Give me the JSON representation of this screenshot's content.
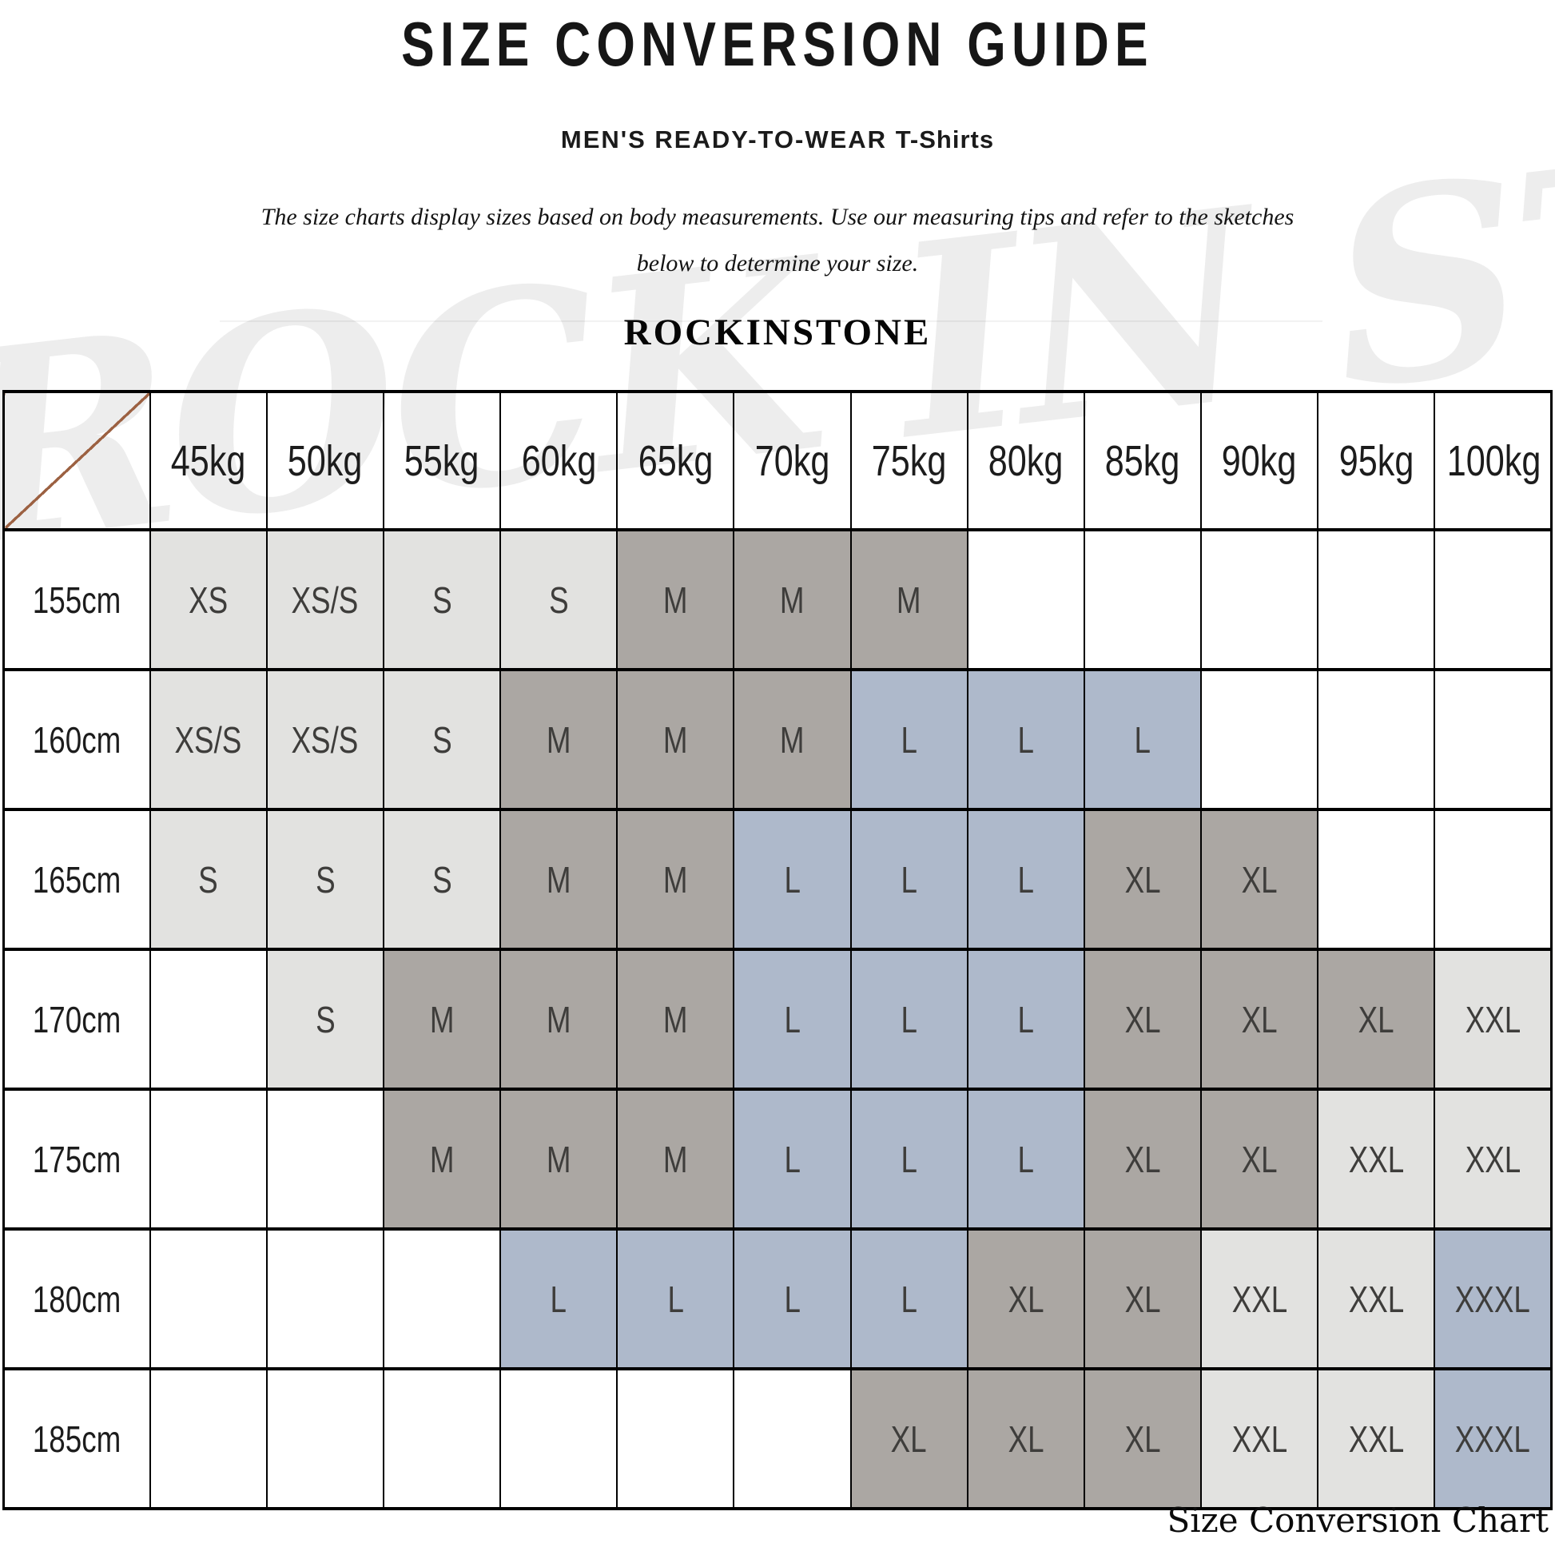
{
  "header": {
    "title": "SIZE CONVERSION GUIDE",
    "subtitle_main": "MEN'S READY-TO-WEAR",
    "subtitle_product": "T-Shirts",
    "description_line1": "The size charts display sizes based on body measurements.  Use our measuring tips and refer to the sketches",
    "description_line2": "below to determine your size.",
    "brand": "ROCKINSTONE"
  },
  "watermark": {
    "text": "ROCK IN STONE"
  },
  "caption": "Size Conversion Chart",
  "colors": {
    "cell_light": "#e2e2e0",
    "cell_taupe": "#aba7a3",
    "cell_blue": "#aeb9cb",
    "grid_line": "#000000",
    "diagonal_line": "#9c6142",
    "size_text": "#3e3d3b"
  },
  "chart_data": {
    "type": "table",
    "title": "SIZE CONVERSION GUIDE",
    "columns": [
      "45kg",
      "50kg",
      "55kg",
      "60kg",
      "65kg",
      "70kg",
      "75kg",
      "80kg",
      "85kg",
      "90kg",
      "95kg",
      "100kg"
    ],
    "row_labels": [
      "155cm",
      "160cm",
      "165cm",
      "170cm",
      "175cm",
      "180cm",
      "185cm"
    ],
    "rows": [
      [
        {
          "size": "XS",
          "shade": "light"
        },
        {
          "size": "XS/S",
          "shade": "light"
        },
        {
          "size": "S",
          "shade": "light"
        },
        {
          "size": "S",
          "shade": "light"
        },
        {
          "size": "M",
          "shade": "taupe"
        },
        {
          "size": "M",
          "shade": "taupe"
        },
        {
          "size": "M",
          "shade": "taupe"
        },
        {
          "size": "",
          "shade": ""
        },
        {
          "size": "",
          "shade": ""
        },
        {
          "size": "",
          "shade": ""
        },
        {
          "size": "",
          "shade": ""
        },
        {
          "size": "",
          "shade": ""
        }
      ],
      [
        {
          "size": "XS/S",
          "shade": "light"
        },
        {
          "size": "XS/S",
          "shade": "light"
        },
        {
          "size": "S",
          "shade": "light"
        },
        {
          "size": "M",
          "shade": "taupe"
        },
        {
          "size": "M",
          "shade": "taupe"
        },
        {
          "size": "M",
          "shade": "taupe"
        },
        {
          "size": "L",
          "shade": "blue"
        },
        {
          "size": "L",
          "shade": "blue"
        },
        {
          "size": "L",
          "shade": "blue"
        },
        {
          "size": "",
          "shade": ""
        },
        {
          "size": "",
          "shade": ""
        },
        {
          "size": "",
          "shade": ""
        }
      ],
      [
        {
          "size": "S",
          "shade": "light"
        },
        {
          "size": "S",
          "shade": "light"
        },
        {
          "size": "S",
          "shade": "light"
        },
        {
          "size": "M",
          "shade": "taupe"
        },
        {
          "size": "M",
          "shade": "taupe"
        },
        {
          "size": "L",
          "shade": "blue"
        },
        {
          "size": "L",
          "shade": "blue"
        },
        {
          "size": "L",
          "shade": "blue"
        },
        {
          "size": "XL",
          "shade": "taupe"
        },
        {
          "size": "XL",
          "shade": "taupe"
        },
        {
          "size": "",
          "shade": ""
        },
        {
          "size": "",
          "shade": ""
        }
      ],
      [
        {
          "size": "",
          "shade": ""
        },
        {
          "size": "S",
          "shade": "light"
        },
        {
          "size": "M",
          "shade": "taupe"
        },
        {
          "size": "M",
          "shade": "taupe"
        },
        {
          "size": "M",
          "shade": "taupe"
        },
        {
          "size": "L",
          "shade": "blue"
        },
        {
          "size": "L",
          "shade": "blue"
        },
        {
          "size": "L",
          "shade": "blue"
        },
        {
          "size": "XL",
          "shade": "taupe"
        },
        {
          "size": "XL",
          "shade": "taupe"
        },
        {
          "size": "XL",
          "shade": "taupe"
        },
        {
          "size": "XXL",
          "shade": "light"
        }
      ],
      [
        {
          "size": "",
          "shade": ""
        },
        {
          "size": "",
          "shade": ""
        },
        {
          "size": "M",
          "shade": "taupe"
        },
        {
          "size": "M",
          "shade": "taupe"
        },
        {
          "size": "M",
          "shade": "taupe"
        },
        {
          "size": "L",
          "shade": "blue"
        },
        {
          "size": "L",
          "shade": "blue"
        },
        {
          "size": "L",
          "shade": "blue"
        },
        {
          "size": "XL",
          "shade": "taupe"
        },
        {
          "size": "XL",
          "shade": "taupe"
        },
        {
          "size": "XXL",
          "shade": "light"
        },
        {
          "size": "XXL",
          "shade": "light"
        }
      ],
      [
        {
          "size": "",
          "shade": ""
        },
        {
          "size": "",
          "shade": ""
        },
        {
          "size": "",
          "shade": ""
        },
        {
          "size": "L",
          "shade": "blue"
        },
        {
          "size": "L",
          "shade": "blue"
        },
        {
          "size": "L",
          "shade": "blue"
        },
        {
          "size": "L",
          "shade": "blue"
        },
        {
          "size": "XL",
          "shade": "taupe"
        },
        {
          "size": "XL",
          "shade": "taupe"
        },
        {
          "size": "XXL",
          "shade": "light"
        },
        {
          "size": "XXL",
          "shade": "light"
        },
        {
          "size": "XXXL",
          "shade": "blue"
        }
      ],
      [
        {
          "size": "",
          "shade": ""
        },
        {
          "size": "",
          "shade": ""
        },
        {
          "size": "",
          "shade": ""
        },
        {
          "size": "",
          "shade": ""
        },
        {
          "size": "",
          "shade": ""
        },
        {
          "size": "",
          "shade": ""
        },
        {
          "size": "XL",
          "shade": "taupe"
        },
        {
          "size": "XL",
          "shade": "taupe"
        },
        {
          "size": "XL",
          "shade": "taupe"
        },
        {
          "size": "XXL",
          "shade": "light"
        },
        {
          "size": "XXL",
          "shade": "light"
        },
        {
          "size": "XXXL",
          "shade": "blue"
        }
      ]
    ]
  }
}
